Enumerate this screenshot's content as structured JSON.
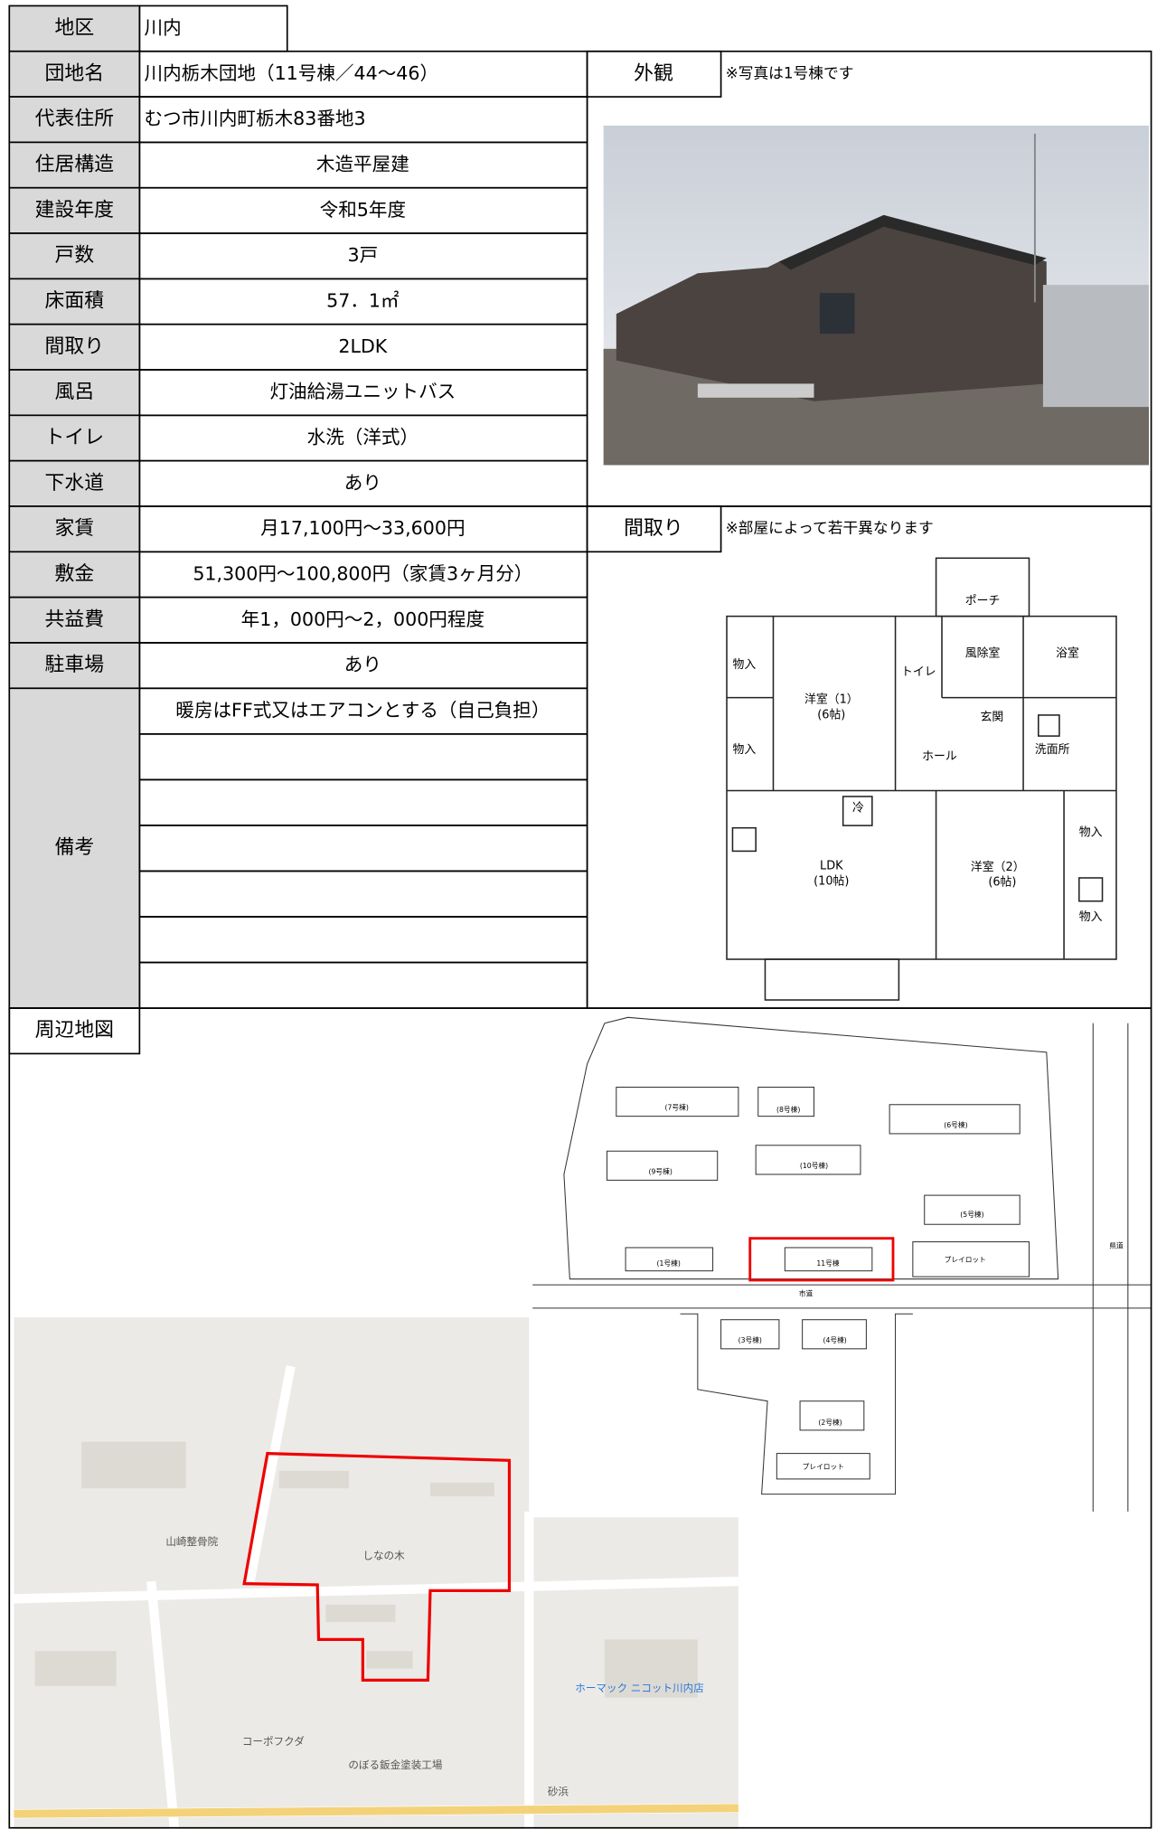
{
  "rows": [
    {
      "label": "地区",
      "value": "川内"
    },
    {
      "label": "団地名",
      "value": "川内栃木団地（11号棟／44～46）"
    },
    {
      "label": "代表住所",
      "value": "むつ市川内町栃木83番地3"
    },
    {
      "label": "住居構造",
      "value": "木造平屋建"
    },
    {
      "label": "建設年度",
      "value": "令和5年度"
    },
    {
      "label": "戸数",
      "value": "3戸"
    },
    {
      "label": "床面積",
      "value": "57．1㎡"
    },
    {
      "label": "間取り",
      "value": "2LDK"
    },
    {
      "label": "風呂",
      "value": "灯油給湯ユニットバス"
    },
    {
      "label": "トイレ",
      "value": "水洗（洋式）"
    },
    {
      "label": "下水道",
      "value": "あり"
    },
    {
      "label": "家賃",
      "value": "月17,100円～33,600円"
    },
    {
      "label": "敷金",
      "value": "51,300円～100,800円（家賃3ヶ月分）"
    },
    {
      "label": "共益費",
      "value": "年1，000円～2，000円程度"
    },
    {
      "label": "駐車場",
      "value": "あり"
    }
  ],
  "remarks": {
    "label": "備考",
    "lines": [
      "暖房はFF式又はエアコンとする（自己負担）"
    ]
  },
  "exterior": {
    "label": "外観",
    "note": "※写真は1号棟です"
  },
  "layout": {
    "label": "間取り",
    "note": "※部屋によって若干異なります",
    "rooms": [
      "ポーチ",
      "浴室",
      "風除室",
      "トイレ",
      "物入",
      "洋室（1）",
      "(6帖)",
      "物入",
      "玄関",
      "ホール",
      "洗面所",
      "冷",
      "LDK",
      "(10帖)",
      "洋室（2）",
      "(6帖)",
      "物入",
      "物入"
    ]
  },
  "map": {
    "label": "周辺地図",
    "site_labels": [
      "(7号棟)",
      "(8号棟)",
      "(6号棟)",
      "(9号棟)",
      "(10号棟)",
      "(5号棟)",
      "(1号棟)",
      "11号棟",
      "プレイロット",
      "市道",
      "県道",
      "(3号棟)",
      "(4号棟)",
      "(2号棟)",
      "プレイロット"
    ],
    "place_labels": [
      "山崎整骨院",
      "しなの木",
      "ホーマック ニコット川内店",
      "コーポフクダ",
      "のぼる鈑金塗装工場",
      "砂浜"
    ]
  }
}
